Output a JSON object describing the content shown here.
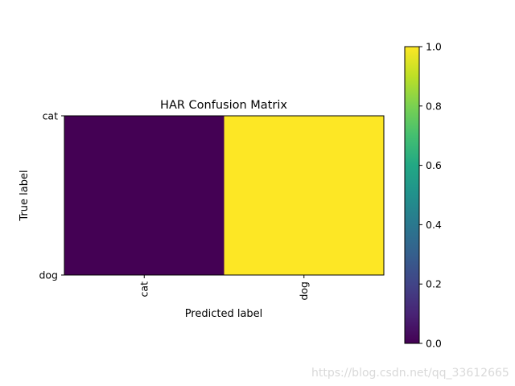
{
  "chart_data": {
    "type": "heatmap",
    "title": "HAR Confusion Matrix",
    "xlabel": "Predicted label",
    "ylabel": "True label",
    "x_categories": [
      "cat",
      "dog"
    ],
    "y_categories": [
      "cat",
      "dog"
    ],
    "values": [
      [
        0.0,
        1.0
      ],
      [
        0.0,
        1.0
      ]
    ],
    "colormap": "viridis",
    "colorbar": {
      "range": [
        0.0,
        1.0
      ],
      "ticks": [
        "0.0",
        "0.2",
        "0.4",
        "0.6",
        "0.8",
        "1.0"
      ]
    },
    "x_tick_rotation": "vertical",
    "grid": false
  },
  "watermark": "https://blog.csdn.net/qq_33612665",
  "colors": {
    "low": "#440154",
    "high": "#fde725"
  }
}
